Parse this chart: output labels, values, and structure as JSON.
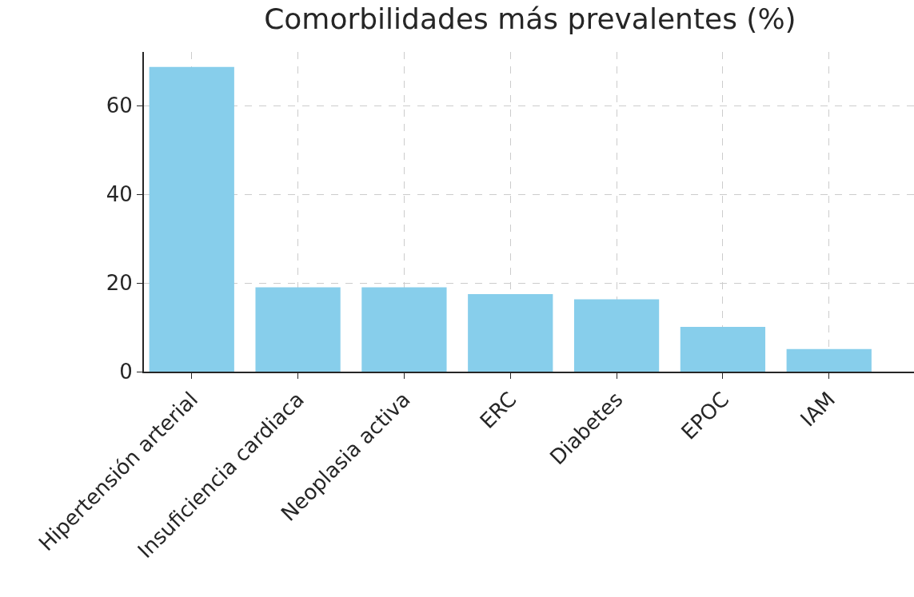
{
  "chart_data": {
    "type": "bar",
    "title": "Comorbilidades más prevalentes (%)",
    "categories": [
      "Hipertensión arterial",
      "Insuficiencia cardiaca",
      "Neoplasia activa",
      "ERC",
      "Diabetes",
      "EPOC",
      "IAM"
    ],
    "values": [
      68.7,
      19.0,
      19.0,
      17.5,
      16.3,
      10.1,
      5.1
    ],
    "color": "#87ceeb",
    "ylim": [
      0,
      72.1
    ],
    "yticks": [
      0,
      20,
      40,
      60
    ],
    "grid": true
  }
}
